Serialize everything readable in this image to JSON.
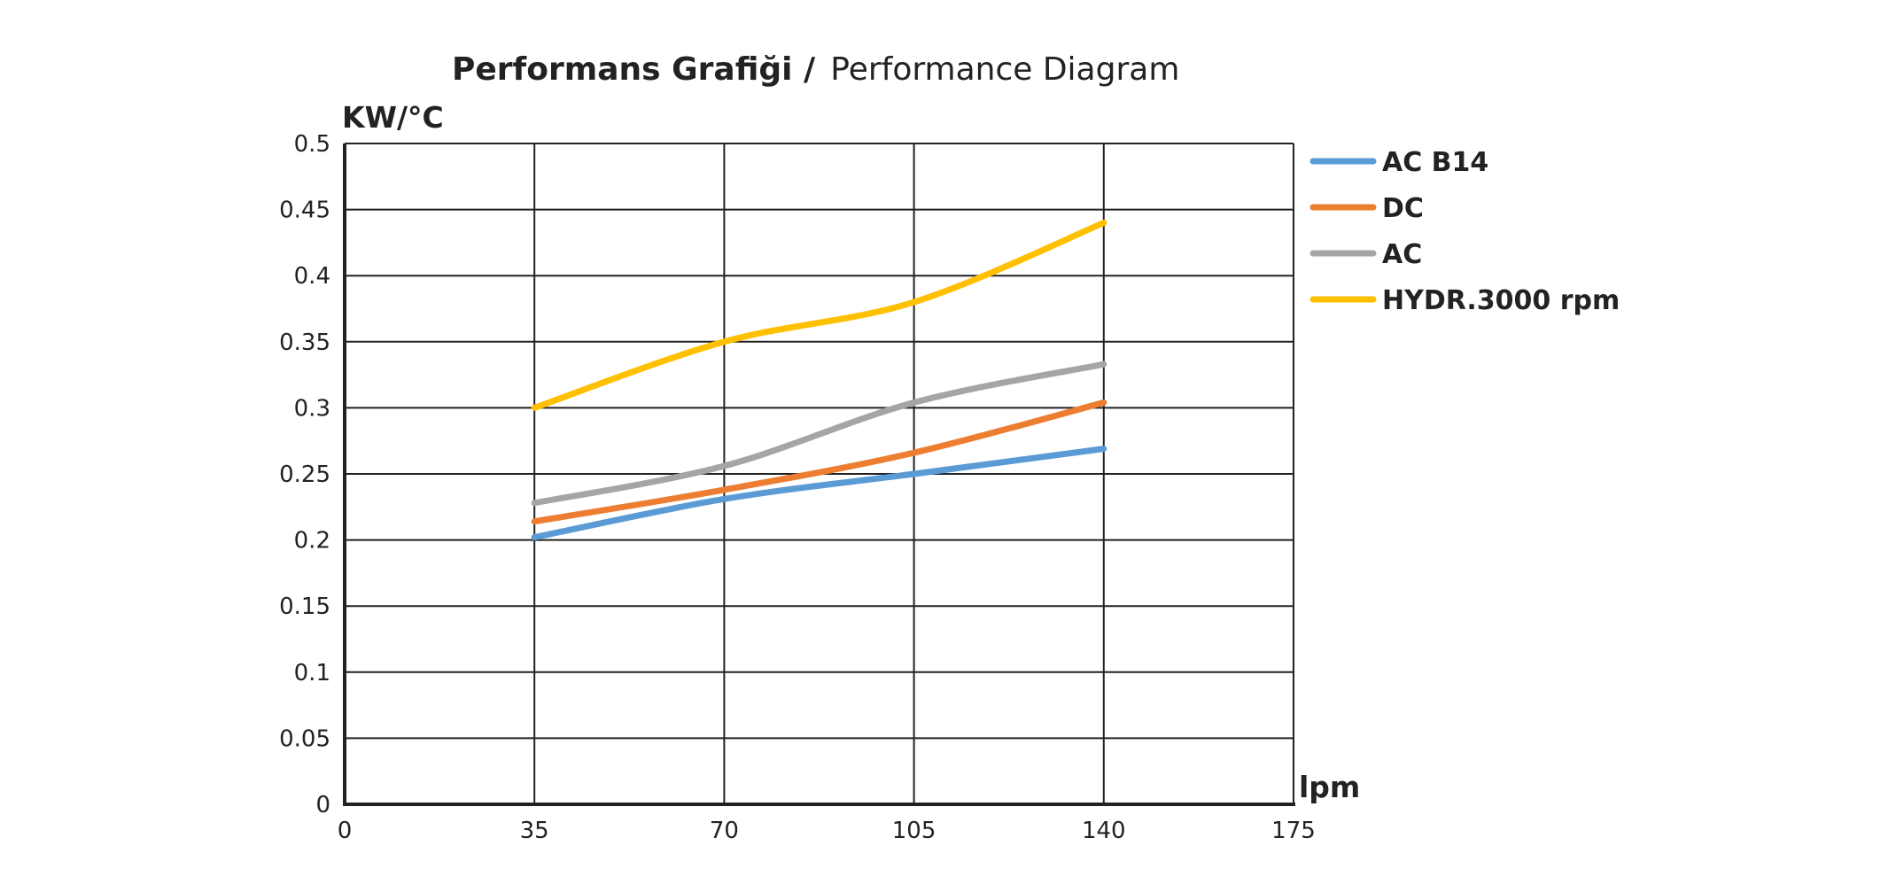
{
  "chart_data": {
    "type": "line",
    "title_bold": "Performans Grafiği /",
    "title_regular": "Performance Diagram",
    "ylabel": "KW/°C",
    "xlabel": "lpm",
    "x_ticks": [
      0,
      35,
      70,
      105,
      140,
      175
    ],
    "x_tick_labels": [
      "0",
      "35",
      "70",
      "105",
      "140",
      "175"
    ],
    "y_ticks": [
      0,
      0.05,
      0.1,
      0.15,
      0.2,
      0.25,
      0.3,
      0.35,
      0.4,
      0.45,
      0.5
    ],
    "y_tick_labels": [
      "0",
      "0.05",
      "0.1",
      "0.15",
      "0.2",
      "0.25",
      "0.3",
      "0.35",
      "0.4",
      "0.45",
      "0.5"
    ],
    "xlim": [
      0,
      175
    ],
    "ylim": [
      0,
      0.5
    ],
    "grid": true,
    "legend_position": "right",
    "x": [
      35,
      70,
      105,
      140
    ],
    "series": [
      {
        "name": "AC B14",
        "color": "#5b9bd5",
        "values": [
          0.202,
          0.231,
          0.25,
          0.269
        ]
      },
      {
        "name": "DC",
        "color": "#ed7d31",
        "values": [
          0.214,
          0.238,
          0.266,
          0.304
        ]
      },
      {
        "name": "AC",
        "color": "#a5a5a5",
        "values": [
          0.228,
          0.256,
          0.304,
          0.333
        ]
      },
      {
        "name": "HYDR.3000 rpm",
        "color": "#ffc000",
        "values": [
          0.3,
          0.35,
          0.38,
          0.44
        ]
      }
    ]
  }
}
